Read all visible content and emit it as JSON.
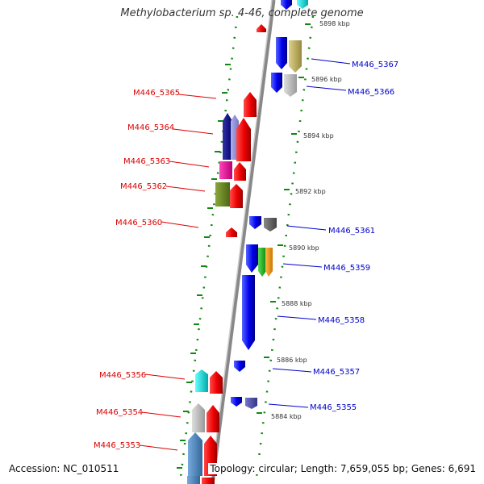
{
  "title": "Methylobacterium sp. 4-46, complete genome",
  "accession": "Accession: NC_010511",
  "topology": "Topology: circular; Length: 7,659,055 bp; Genes: 6,691",
  "kbp_labels": [
    "5898 kbp",
    "5896 kbp",
    "5894 kbp",
    "5892 kbp",
    "5890 kbp",
    "5888 kbp",
    "5886 kbp",
    "5884 kbp"
  ],
  "left_gene_labels": [
    "M446_5365",
    "M446_5364",
    "M446_5363",
    "M446_5362",
    "M446_5360",
    "M446_5356",
    "M446_5354",
    "M446_5353"
  ],
  "right_gene_labels": [
    "M446_5367",
    "M446_5366",
    "M446_5361",
    "M446_5359",
    "M446_5358",
    "M446_5357",
    "M446_5355"
  ],
  "colors": {
    "left_label": "#dd0000",
    "right_label": "#0000cc",
    "backbone": "#888888",
    "tick": "#118811"
  }
}
